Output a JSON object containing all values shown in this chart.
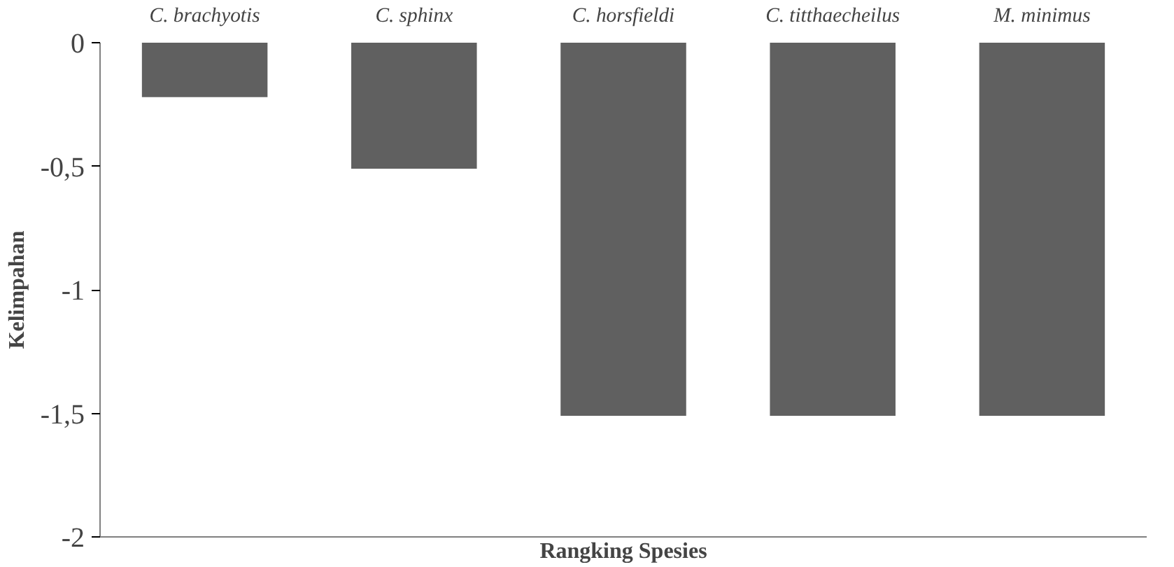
{
  "chart_data": {
    "type": "bar",
    "xlabel": "Rangking Spesies",
    "ylabel": "Kelimpahan",
    "categories": [
      "C. brachyotis",
      "C. sphinx",
      "C. horsfieldi",
      "C. titthaecheilus",
      "M. minimus"
    ],
    "values": [
      -0.22,
      -0.51,
      -1.51,
      -1.51,
      -1.51
    ],
    "color": "#606060",
    "ylim": [
      -2,
      0
    ],
    "yticks": [
      0,
      {
        "value": -0.5,
        "label": "-0,5"
      },
      -1,
      {
        "value": -1.5,
        "label": "-1,5"
      },
      -2
    ],
    "grid": false
  }
}
